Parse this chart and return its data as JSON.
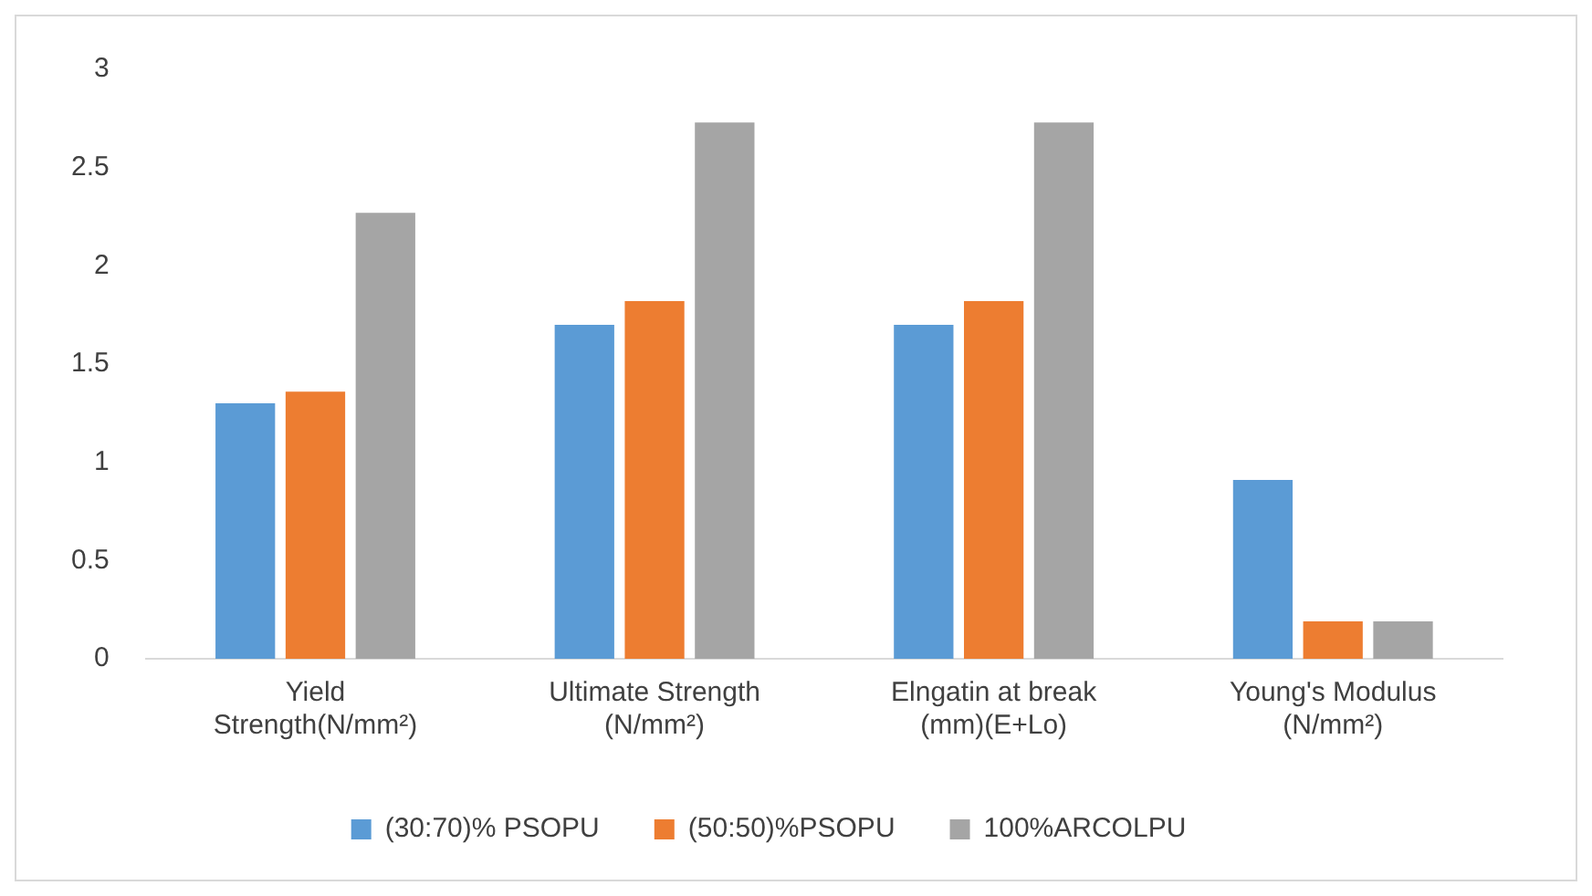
{
  "chart_data": {
    "type": "bar",
    "categories": [
      "Yield Strength(N/mm²)",
      "Ultimate Strength (N/mm²)",
      "Elngatin at break (mm)(E+Lo)",
      "Young's Modulus (N/mm²)"
    ],
    "series": [
      {
        "name": "(30:70)% PSOPU",
        "color": "#5b9bd5",
        "values": [
          1.3,
          1.7,
          1.7,
          0.91
        ]
      },
      {
        "name": "(50:50)%PSOPU",
        "color": "#ed7d31",
        "values": [
          1.36,
          1.82,
          1.82,
          0.19
        ]
      },
      {
        "name": "100%ARCOLPU",
        "color": "#a5a5a5",
        "values": [
          2.27,
          2.73,
          2.73,
          0.19
        ]
      }
    ],
    "ylim": [
      0,
      3
    ],
    "yticks": [
      0,
      0.5,
      1,
      1.5,
      2,
      2.5,
      3
    ],
    "grid": false,
    "legend": "bottom"
  }
}
